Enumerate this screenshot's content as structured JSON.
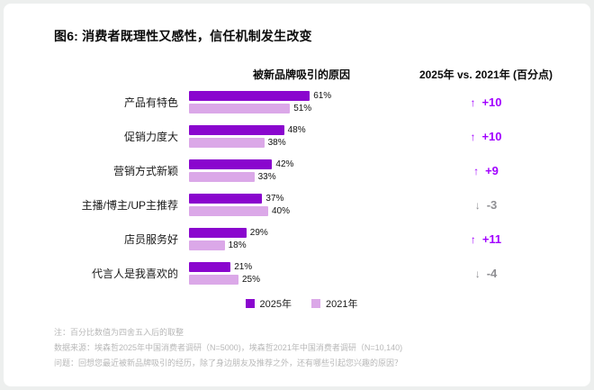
{
  "page": {
    "title": "图6: 消费者既理性又感性，信任机制发生改变"
  },
  "chart_data": {
    "type": "bar",
    "orientation": "horizontal",
    "left_header": "被新品牌吸引的原因",
    "right_header": "2025年 vs. 2021年 (百分点)",
    "categories": [
      "产品有特色",
      "促销力度大",
      "营销方式新颖",
      "主播/博主/UP主推荐",
      "店员服务好",
      "代言人是我喜欢的"
    ],
    "series": [
      {
        "name": "2025年",
        "color": "#8A06CE",
        "values": [
          61,
          48,
          42,
          37,
          29,
          21
        ]
      },
      {
        "name": "2021年",
        "color": "#DBA8E8",
        "values": [
          51,
          38,
          33,
          40,
          18,
          25
        ]
      }
    ],
    "changes": [
      {
        "label": "+10",
        "direction": "up"
      },
      {
        "label": "+10",
        "direction": "up"
      },
      {
        "label": "+9",
        "direction": "up"
      },
      {
        "label": "-3",
        "direction": "down"
      },
      {
        "label": "+11",
        "direction": "up"
      },
      {
        "label": "-4",
        "direction": "down"
      }
    ],
    "value_suffix": "%",
    "xlim": [
      0,
      100
    ],
    "grid": false,
    "legend_position": "bottom",
    "colors": {
      "positive_change": "#A100FF",
      "negative_change": "#8F8F93"
    }
  },
  "footnotes": [
    "注：百分比数值为四舍五入后的取整",
    "数据来源：埃森哲2025年中国消费者调研（N=5000)，埃森哲2021年中国消费者调研（N=10,140)",
    "问题：回想您最近被新品牌吸引的经历，除了身边朋友及推荐之外，还有哪些引起您兴趣的原因？"
  ]
}
